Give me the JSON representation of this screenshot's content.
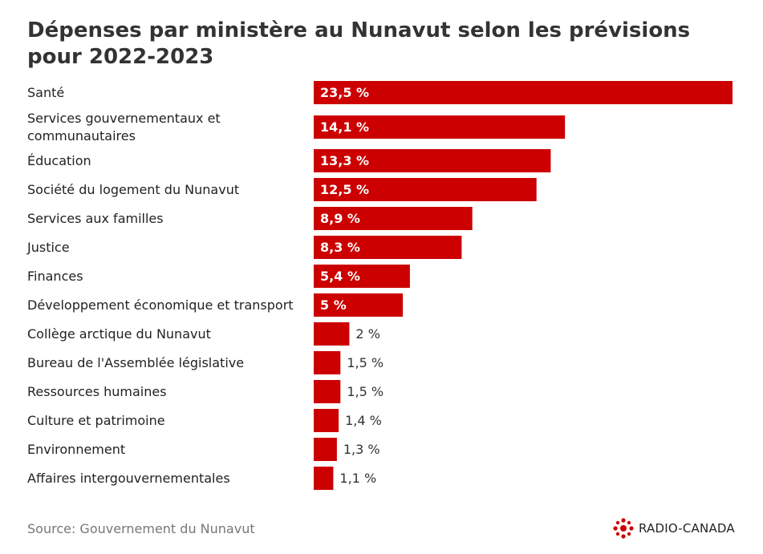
{
  "title": "Dépenses par ministère au Nunavut selon les prévisions pour 2022-2023",
  "source": "Source: Gouvernement du Nunavut",
  "brand": {
    "name": "RADIO-CANADA",
    "logo_icon": "radio-canada-gem-icon",
    "color": "#cc0000"
  },
  "colors": {
    "bar": "#cc0000",
    "label": "#222222",
    "value_outside": "#333333"
  },
  "chart_data": {
    "type": "bar",
    "orientation": "horizontal",
    "categories": [
      [
        "Santé"
      ],
      [
        "Services gouvernementaux et",
        "communautaires"
      ],
      [
        "Éducation"
      ],
      [
        "Société du logement du Nunavut"
      ],
      [
        "Services aux familles"
      ],
      [
        "Justice"
      ],
      [
        "Finances"
      ],
      [
        "Développement économique et transport"
      ],
      [
        "Collège arctique du Nunavut"
      ],
      [
        "Bureau de l'Assemblée législative"
      ],
      [
        "Ressources humaines"
      ],
      [
        "Culture et patrimoine"
      ],
      [
        "Environnement"
      ],
      [
        "Affaires intergouvernementales"
      ]
    ],
    "values": [
      23.5,
      14.1,
      13.3,
      12.5,
      8.9,
      8.3,
      5.4,
      5,
      2,
      1.5,
      1.5,
      1.4,
      1.3,
      1.1
    ],
    "value_labels": [
      "23,5 %",
      "14,1 %",
      "13,3 %",
      "12,5 %",
      "8,9 %",
      "8,3 %",
      "5,4 %",
      "5 %",
      "2 %",
      "1,5 %",
      "1,5 %",
      "1,4 %",
      "1,3 %",
      "1,1 %"
    ],
    "xlim": [
      0,
      23.5
    ],
    "grid": false,
    "legend": "none"
  }
}
